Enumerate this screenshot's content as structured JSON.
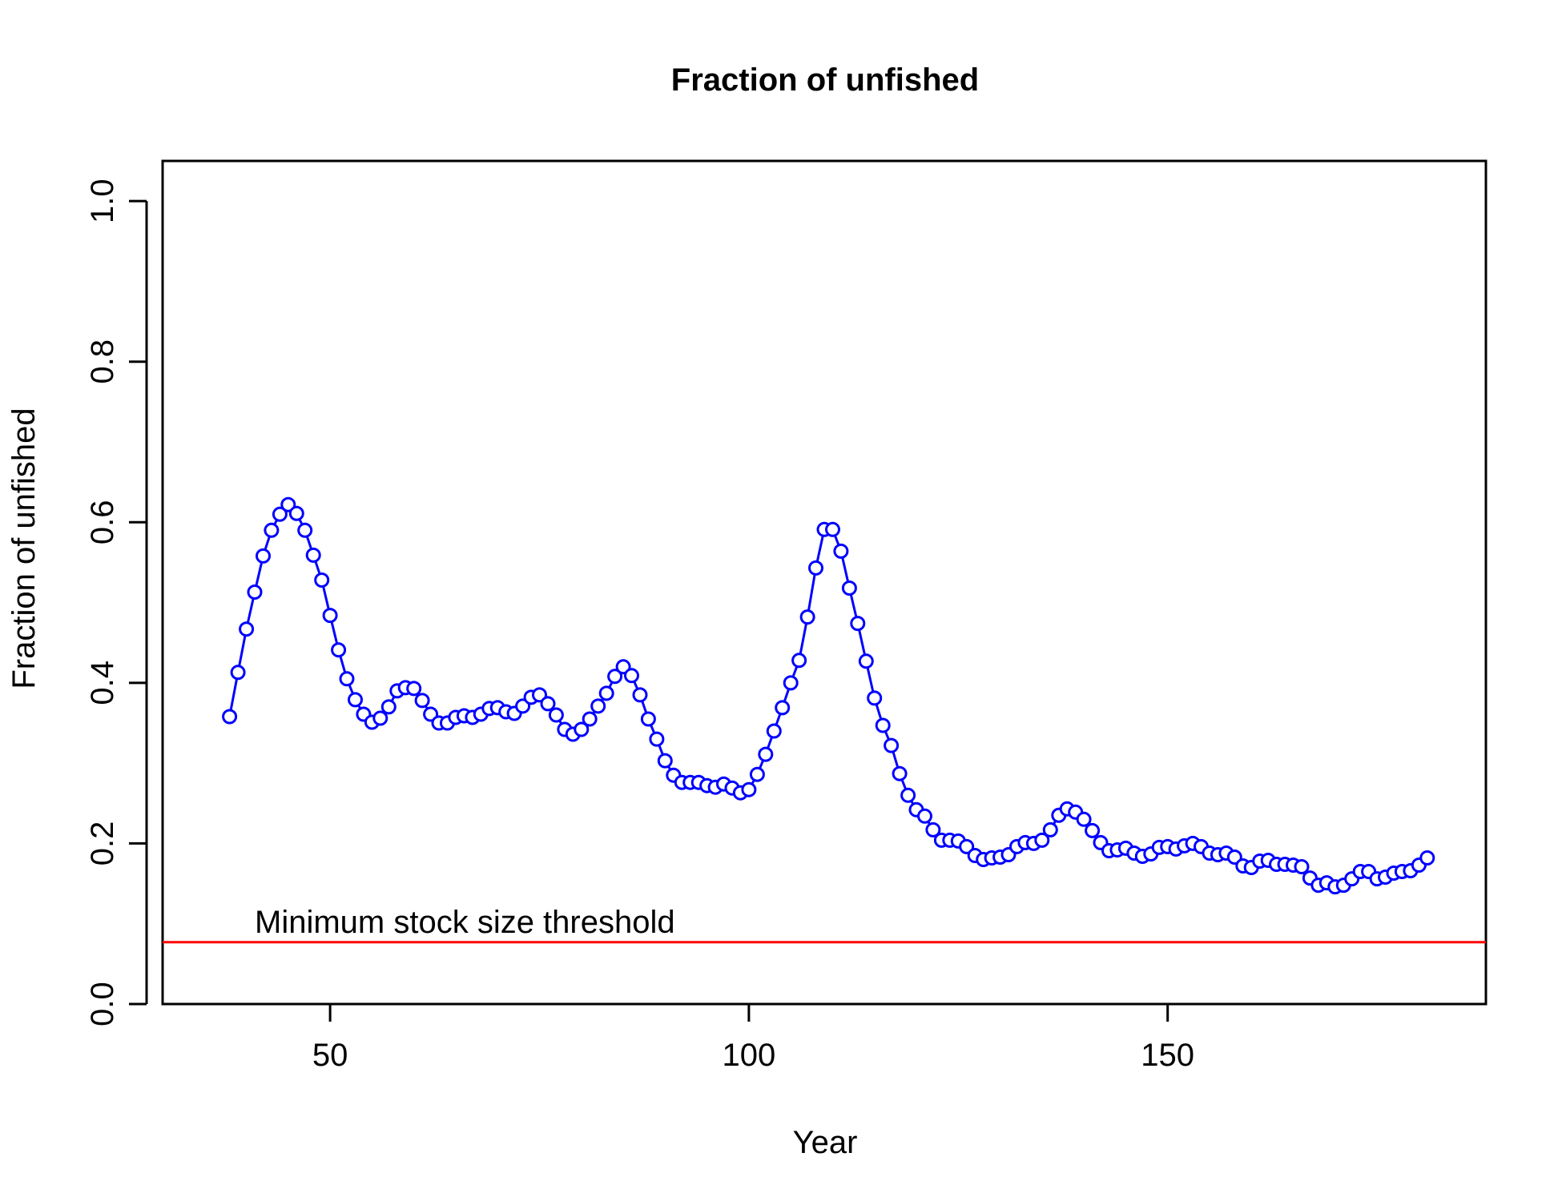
{
  "chart_data": {
    "type": "line",
    "title": "Fraction of unfished",
    "xlabel": "Year",
    "ylabel": "Fraction of unfished",
    "xlim": [
      30,
      188
    ],
    "ylim": [
      0,
      1.05
    ],
    "x_ticks": [
      50,
      100,
      150
    ],
    "y_ticks": [
      0.0,
      0.2,
      0.4,
      0.6,
      0.8,
      1.0
    ],
    "x_tick_labels": [
      "50",
      "100",
      "150"
    ],
    "y_tick_labels": [
      "0.0",
      "0.2",
      "0.4",
      "0.6",
      "0.8",
      "1.0"
    ],
    "grid": false,
    "legend": "none",
    "colors": {
      "series": "#0000ff",
      "threshold": "#ff0000",
      "axis": "#000000"
    },
    "series": [
      {
        "marker": "open-circle",
        "x": [
          38,
          39,
          40,
          41,
          42,
          43,
          44,
          45,
          46,
          47,
          48,
          49,
          50,
          51,
          52,
          53,
          54,
          55,
          56,
          57,
          58,
          59,
          60,
          61,
          62,
          63,
          64,
          65,
          66,
          67,
          68,
          69,
          70,
          71,
          72,
          73,
          74,
          75,
          76,
          77,
          78,
          79,
          80,
          81,
          82,
          83,
          84,
          85,
          86,
          87,
          88,
          89,
          90,
          91,
          92,
          93,
          94,
          95,
          96,
          97,
          98,
          99,
          100,
          101,
          102,
          103,
          104,
          105,
          106,
          107,
          108,
          109,
          110,
          111,
          112,
          113,
          114,
          115,
          116,
          117,
          118,
          119,
          120,
          121,
          122,
          123,
          124,
          125,
          126,
          127,
          128,
          129,
          130,
          131,
          132,
          133,
          134,
          135,
          136,
          137,
          138,
          139,
          140,
          141,
          142,
          143,
          144,
          145,
          146,
          147,
          148,
          149,
          150,
          151,
          152,
          153,
          154,
          155,
          156,
          157,
          158,
          159,
          160,
          161,
          162,
          163,
          164,
          165,
          166,
          167,
          168,
          169,
          170,
          171,
          172,
          173,
          174,
          175,
          176,
          177,
          178,
          179,
          180,
          181
        ],
        "y": [
          0.358,
          0.413,
          0.467,
          0.513,
          0.558,
          0.59,
          0.61,
          0.622,
          0.611,
          0.59,
          0.559,
          0.528,
          0.484,
          0.441,
          0.405,
          0.379,
          0.361,
          0.351,
          0.356,
          0.37,
          0.39,
          0.394,
          0.393,
          0.378,
          0.361,
          0.35,
          0.35,
          0.357,
          0.359,
          0.357,
          0.361,
          0.368,
          0.369,
          0.364,
          0.362,
          0.371,
          0.382,
          0.385,
          0.374,
          0.36,
          0.342,
          0.336,
          0.342,
          0.355,
          0.371,
          0.387,
          0.408,
          0.42,
          0.409,
          0.385,
          0.355,
          0.33,
          0.303,
          0.285,
          0.276,
          0.276,
          0.276,
          0.272,
          0.27,
          0.274,
          0.269,
          0.263,
          0.267,
          0.286,
          0.311,
          0.34,
          0.369,
          0.4,
          0.428,
          0.482,
          0.543,
          0.591,
          0.591,
          0.564,
          0.518,
          0.474,
          0.427,
          0.381,
          0.347,
          0.322,
          0.287,
          0.26,
          0.242,
          0.234,
          0.217,
          0.204,
          0.204,
          0.203,
          0.196,
          0.185,
          0.18,
          0.182,
          0.183,
          0.186,
          0.196,
          0.201,
          0.2,
          0.204,
          0.217,
          0.235,
          0.243,
          0.239,
          0.23,
          0.216,
          0.201,
          0.191,
          0.192,
          0.194,
          0.188,
          0.184,
          0.187,
          0.195,
          0.196,
          0.193,
          0.197,
          0.2,
          0.196,
          0.188,
          0.186,
          0.188,
          0.183,
          0.172,
          0.17,
          0.178,
          0.179,
          0.174,
          0.174,
          0.173,
          0.171,
          0.157,
          0.148,
          0.151,
          0.146,
          0.148,
          0.156,
          0.165,
          0.165,
          0.156,
          0.158,
          0.163,
          0.165,
          0.166,
          0.173,
          0.182
        ]
      }
    ],
    "hlines": [
      {
        "y": 0.077,
        "label": "Minimum stock size threshold",
        "label_x": 41
      }
    ]
  }
}
